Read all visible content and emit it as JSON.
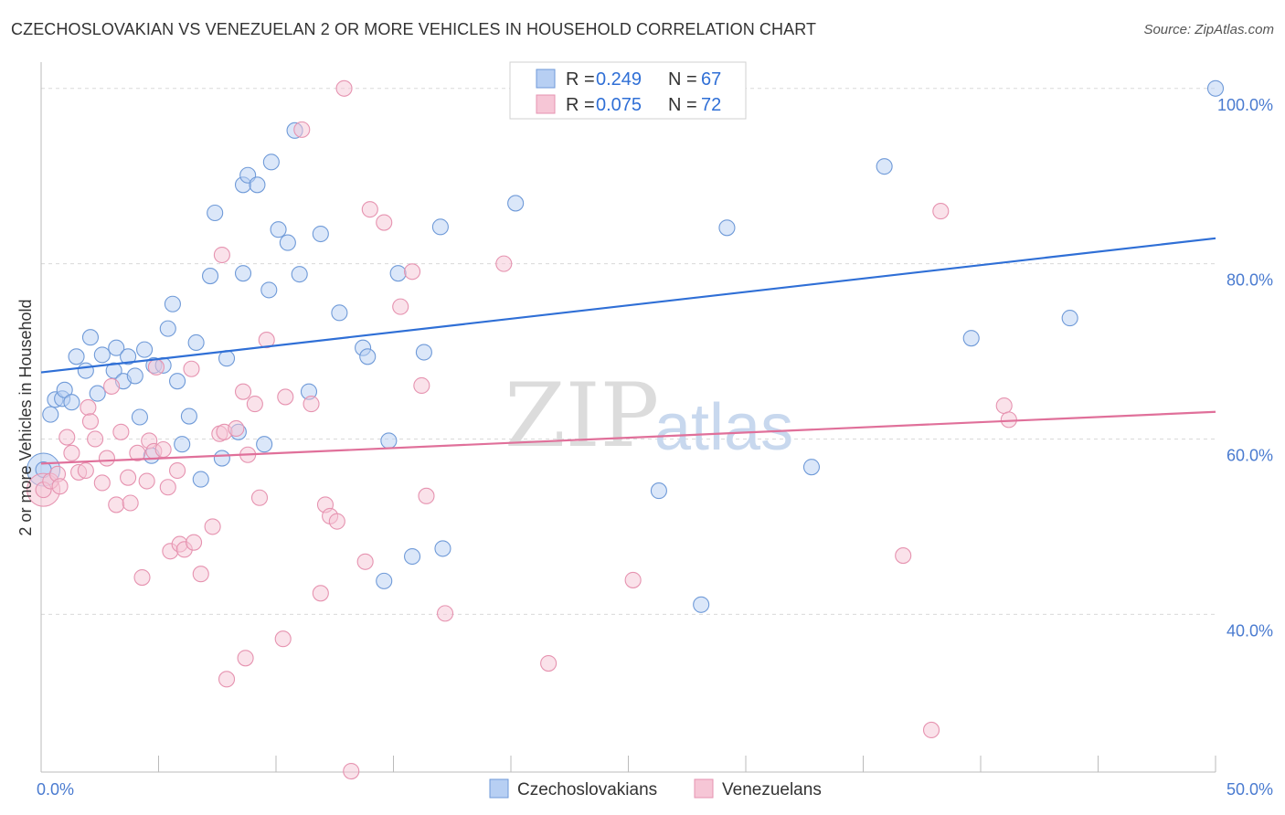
{
  "header": {
    "title": "CZECHOSLOVAKIAN VS VENEZUELAN 2 OR MORE VEHICLES IN HOUSEHOLD CORRELATION CHART",
    "source": "Source: ZipAtlas.com"
  },
  "watermark": {
    "zip": "ZIP",
    "atlas": "atlas"
  },
  "colors": {
    "blue_fill": "#b7cff3",
    "blue_stroke": "#6f9ad8",
    "blue_line": "#2f6fd6",
    "pink_fill": "#f6c6d6",
    "pink_stroke": "#e693b0",
    "pink_line": "#e0709a",
    "grid": "#d9d9d9",
    "axis_text": "#4a7bd0"
  },
  "legend": {
    "r_label": "R =",
    "n_label": "N =",
    "rows": [
      {
        "r": "0.249",
        "n": "67",
        "color": "blue"
      },
      {
        "r": "0.075",
        "n": "72",
        "color": "pink"
      }
    ]
  },
  "bottom_legend": [
    {
      "label": "Czechoslovakians",
      "color": "blue"
    },
    {
      "label": "Venezuelans",
      "color": "pink"
    }
  ],
  "chart_data": {
    "type": "scatter",
    "xlabel": "",
    "ylabel": "2 or more Vehicles in Household",
    "xlim": [
      0,
      50
    ],
    "ylim": [
      22,
      103
    ],
    "x_tick_labels": [
      {
        "value": 0,
        "label": "0.0%"
      },
      {
        "value": 50,
        "label": "50.0%"
      }
    ],
    "y_tick_labels": [
      {
        "value": 40,
        "label": "40.0%"
      },
      {
        "value": 60,
        "label": "60.0%"
      },
      {
        "value": 80,
        "label": "80.0%"
      },
      {
        "value": 100,
        "label": "100.0%"
      }
    ],
    "grid": "horizontal-dashed",
    "legend_position": "top-center",
    "series": [
      {
        "name": "Czechoslovakians",
        "color": "blue",
        "trend": {
          "x": [
            0,
            50
          ],
          "y": [
            67.6,
            82.9
          ]
        },
        "points": [
          [
            0.1,
            56.5
          ],
          [
            0.4,
            62.8
          ],
          [
            0.6,
            64.5
          ],
          [
            0.9,
            64.6
          ],
          [
            1.0,
            65.6
          ],
          [
            1.3,
            64.2
          ],
          [
            1.5,
            69.4
          ],
          [
            1.9,
            67.8
          ],
          [
            2.1,
            71.6
          ],
          [
            2.4,
            65.2
          ],
          [
            2.6,
            69.6
          ],
          [
            3.2,
            70.4
          ],
          [
            3.1,
            67.8
          ],
          [
            3.5,
            66.6
          ],
          [
            3.7,
            69.4
          ],
          [
            4.0,
            67.2
          ],
          [
            4.2,
            62.5
          ],
          [
            4.4,
            70.2
          ],
          [
            4.7,
            58.1
          ],
          [
            4.8,
            68.4
          ],
          [
            5.2,
            68.4
          ],
          [
            5.4,
            72.6
          ],
          [
            5.6,
            75.4
          ],
          [
            5.8,
            66.6
          ],
          [
            6.0,
            59.4
          ],
          [
            6.3,
            62.6
          ],
          [
            6.6,
            71.0
          ],
          [
            6.8,
            55.4
          ],
          [
            7.2,
            78.6
          ],
          [
            7.4,
            85.8
          ],
          [
            7.7,
            57.8
          ],
          [
            7.9,
            69.2
          ],
          [
            8.4,
            60.8
          ],
          [
            8.6,
            78.9
          ],
          [
            8.6,
            89.0
          ],
          [
            8.8,
            90.1
          ],
          [
            9.2,
            89.0
          ],
          [
            9.5,
            59.4
          ],
          [
            9.7,
            77.0
          ],
          [
            9.8,
            91.6
          ],
          [
            10.1,
            83.9
          ],
          [
            10.5,
            82.4
          ],
          [
            10.8,
            95.2
          ],
          [
            11.0,
            78.8
          ],
          [
            11.4,
            65.4
          ],
          [
            11.9,
            83.4
          ],
          [
            12.7,
            74.4
          ],
          [
            13.7,
            70.4
          ],
          [
            13.9,
            69.4
          ],
          [
            14.6,
            43.8
          ],
          [
            14.8,
            59.8
          ],
          [
            15.2,
            78.9
          ],
          [
            15.8,
            46.6
          ],
          [
            16.3,
            69.9
          ],
          [
            17.0,
            84.2
          ],
          [
            17.1,
            47.5
          ],
          [
            20.2,
            86.9
          ],
          [
            26.3,
            54.1
          ],
          [
            28.1,
            41.1
          ],
          [
            29.2,
            84.1
          ],
          [
            32.8,
            56.8
          ],
          [
            35.9,
            91.1
          ],
          [
            39.6,
            71.5
          ],
          [
            43.8,
            73.8
          ],
          [
            50.0,
            100.0
          ]
        ],
        "large_points": [
          [
            0.1,
            56.5
          ]
        ]
      },
      {
        "name": "Venezuelans",
        "color": "pink",
        "trend": {
          "x": [
            0,
            50
          ],
          "y": [
            57.2,
            63.1
          ]
        },
        "points": [
          [
            0.1,
            54.2
          ],
          [
            0.4,
            55.2
          ],
          [
            0.7,
            56.0
          ],
          [
            0.8,
            54.6
          ],
          [
            1.1,
            60.2
          ],
          [
            1.3,
            58.4
          ],
          [
            1.6,
            56.2
          ],
          [
            1.9,
            56.4
          ],
          [
            2.0,
            63.6
          ],
          [
            2.1,
            62.0
          ],
          [
            2.3,
            60.0
          ],
          [
            2.6,
            55.0
          ],
          [
            2.8,
            57.8
          ],
          [
            3.0,
            66.0
          ],
          [
            3.2,
            52.5
          ],
          [
            3.4,
            60.8
          ],
          [
            3.7,
            55.6
          ],
          [
            3.8,
            52.7
          ],
          [
            4.1,
            58.4
          ],
          [
            4.3,
            44.2
          ],
          [
            4.5,
            55.2
          ],
          [
            4.6,
            59.8
          ],
          [
            4.8,
            58.6
          ],
          [
            4.9,
            68.2
          ],
          [
            5.2,
            58.8
          ],
          [
            5.4,
            54.5
          ],
          [
            5.5,
            47.2
          ],
          [
            5.8,
            56.4
          ],
          [
            5.9,
            48.0
          ],
          [
            6.1,
            47.4
          ],
          [
            6.4,
            68.0
          ],
          [
            6.5,
            48.2
          ],
          [
            6.8,
            44.6
          ],
          [
            7.3,
            50.0
          ],
          [
            7.6,
            60.6
          ],
          [
            7.7,
            81.0
          ],
          [
            7.8,
            60.8
          ],
          [
            7.9,
            32.6
          ],
          [
            8.3,
            61.2
          ],
          [
            8.6,
            65.4
          ],
          [
            8.7,
            35.0
          ],
          [
            8.8,
            58.2
          ],
          [
            9.1,
            64.0
          ],
          [
            9.3,
            53.3
          ],
          [
            9.6,
            71.3
          ],
          [
            10.3,
            37.2
          ],
          [
            10.4,
            64.8
          ],
          [
            11.1,
            95.3
          ],
          [
            11.5,
            64.0
          ],
          [
            11.9,
            42.4
          ],
          [
            12.1,
            52.5
          ],
          [
            12.3,
            51.2
          ],
          [
            12.6,
            50.6
          ],
          [
            12.9,
            100.0
          ],
          [
            13.2,
            22.1
          ],
          [
            13.8,
            46.0
          ],
          [
            14.0,
            86.2
          ],
          [
            14.6,
            84.7
          ],
          [
            15.3,
            75.1
          ],
          [
            15.8,
            79.1
          ],
          [
            16.2,
            66.1
          ],
          [
            16.4,
            53.5
          ],
          [
            17.2,
            40.1
          ],
          [
            19.7,
            80.0
          ],
          [
            21.6,
            34.4
          ],
          [
            25.2,
            43.9
          ],
          [
            36.7,
            46.7
          ],
          [
            37.9,
            26.8
          ],
          [
            38.3,
            86.0
          ],
          [
            41.0,
            63.8
          ],
          [
            41.2,
            62.2
          ]
        ],
        "large_points": [
          [
            0.1,
            54.2
          ]
        ]
      }
    ]
  }
}
